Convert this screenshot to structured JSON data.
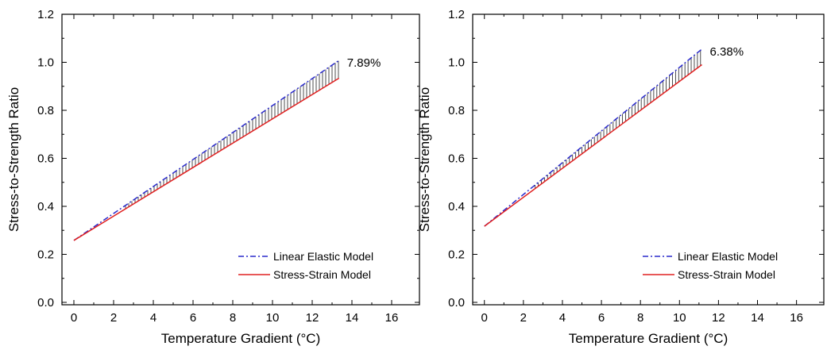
{
  "chart_data": [
    {
      "type": "line",
      "title": "",
      "xlabel": "Temperature Gradient (°C)",
      "ylabel": "Stress-to-Strength Ratio",
      "xlim": [
        -0.6,
        17.4
      ],
      "ylim": [
        -0.01,
        1.2
      ],
      "xticks": [
        0,
        2,
        4,
        6,
        8,
        10,
        12,
        14,
        16
      ],
      "yticks": [
        0.0,
        0.2,
        0.4,
        0.6,
        0.8,
        1.0,
        1.2
      ],
      "xtick_labels": [
        "0",
        "2",
        "4",
        "6",
        "8",
        "10",
        "12",
        "14",
        "16"
      ],
      "ytick_labels": [
        "0.0",
        "0.2",
        "0.4",
        "0.6",
        "0.8",
        "1.0",
        "1.2"
      ],
      "grid": false,
      "legend_position": "bottom-right",
      "annotation": "7.89%",
      "hatched_region_between_series": true,
      "series": [
        {
          "name": "Linear Elastic Model",
          "color": "#2a2acc",
          "style": "dash-dot",
          "x": [
            0,
            13.35
          ],
          "y": [
            0.258,
            1.008
          ]
        },
        {
          "name": "Stress-Strain Model",
          "color": "#e02020",
          "style": "solid",
          "x": [
            0,
            13.35
          ],
          "y": [
            0.258,
            0.934
          ]
        }
      ]
    },
    {
      "type": "line",
      "title": "",
      "xlabel": "Temperature Gradient (°C)",
      "ylabel": "Stress-to-Strength Ratio",
      "xlim": [
        -0.6,
        17.4
      ],
      "ylim": [
        -0.01,
        1.2
      ],
      "xticks": [
        0,
        2,
        4,
        6,
        8,
        10,
        12,
        14,
        16
      ],
      "yticks": [
        0.0,
        0.2,
        0.4,
        0.6,
        0.8,
        1.0,
        1.2
      ],
      "xtick_labels": [
        "0",
        "2",
        "4",
        "6",
        "8",
        "10",
        "12",
        "14",
        "16"
      ],
      "ytick_labels": [
        "0.0",
        "0.2",
        "0.4",
        "0.6",
        "0.8",
        "1.0",
        "1.2"
      ],
      "grid": false,
      "legend_position": "bottom-right",
      "annotation": "6.38%",
      "hatched_region_between_series": true,
      "series": [
        {
          "name": "Linear Elastic Model",
          "color": "#2a2acc",
          "style": "dash-dot",
          "x": [
            0,
            11.15
          ],
          "y": [
            0.317,
            1.055
          ]
        },
        {
          "name": "Stress-Strain Model",
          "color": "#e02020",
          "style": "solid",
          "x": [
            0,
            11.15
          ],
          "y": [
            0.317,
            0.99
          ]
        }
      ]
    }
  ]
}
